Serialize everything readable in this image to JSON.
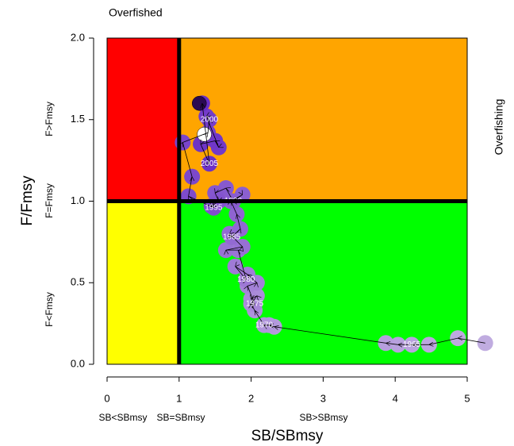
{
  "chart_data": {
    "type": "kobe",
    "title": "Overfished",
    "right_label": "Overfishing",
    "xlabel": "SB/SBmsy",
    "ylabel": "F/Fmsy",
    "x_zone_labels": [
      "SB<SBmsy",
      "SB=SBmsy",
      "SB>SBmsy"
    ],
    "y_zone_labels": [
      "F<Fmsy",
      "F=Fmsy",
      "F>Fmsy"
    ],
    "xlim": [
      0,
      5
    ],
    "ylim": [
      0,
      2
    ],
    "xticks": [
      0,
      1,
      2,
      3,
      4,
      5
    ],
    "yticks": [
      {
        "value": 0,
        "label": "0.0"
      },
      0.5,
      {
        "value": 1,
        "label": "1.0"
      },
      1.5,
      {
        "value": 2,
        "label": "2.0"
      }
    ],
    "ref_lines": {
      "x": 1,
      "y": 1
    },
    "quadrant_colors": {
      "low_sb_high_f": "#ff0000",
      "high_sb_high_f": "#ffa500",
      "low_sb_low_f": "#ffff00",
      "high_sb_low_f": "#00ff00"
    },
    "color_start": "#c0ace0",
    "color_end": "#6a2ec6",
    "x": [
      5.25,
      4.87,
      4.47,
      4.23,
      4.04,
      3.87,
      2.32,
      2.25,
      2.18,
      2.05,
      2.0,
      2.08,
      2.0,
      2.05,
      1.95,
      2.08,
      1.95,
      1.78,
      1.93,
      1.82,
      1.65,
      1.88,
      1.7,
      1.73,
      1.85,
      1.8,
      1.72,
      1.88,
      1.75,
      1.65,
      1.5,
      1.55,
      1.45,
      1.48,
      1.13,
      1.18,
      1.05,
      1.4,
      1.42,
      1.38,
      1.55,
      1.5,
      1.3,
      1.42,
      1.32
    ],
    "y": [
      0.13,
      0.16,
      0.12,
      0.12,
      0.12,
      0.13,
      0.23,
      0.24,
      0.24,
      0.33,
      0.37,
      0.42,
      0.4,
      0.37,
      0.48,
      0.5,
      0.55,
      0.6,
      0.52,
      0.7,
      0.7,
      0.72,
      0.8,
      0.78,
      0.83,
      0.92,
      1.0,
      1.04,
      1.0,
      1.08,
      1.05,
      1.0,
      0.97,
      0.96,
      1.03,
      1.15,
      1.36,
      1.42,
      1.5,
      1.52,
      1.33,
      1.37,
      1.35,
      1.23,
      1.6
    ],
    "point_labels": [
      null,
      null,
      null,
      "1965",
      null,
      null,
      null,
      null,
      "1970",
      null,
      null,
      null,
      null,
      "1975",
      null,
      null,
      null,
      null,
      "1980",
      null,
      null,
      null,
      null,
      "1985",
      null,
      null,
      null,
      null,
      "1990",
      null,
      null,
      null,
      null,
      "1995",
      null,
      null,
      null,
      null,
      "2000",
      null,
      null,
      null,
      null,
      "2005",
      null
    ],
    "highlight_points": [
      {
        "x": 1.28,
        "y": 1.6,
        "color": "#2b0a52"
      },
      {
        "x": 1.35,
        "y": 1.41,
        "color": "#ffffff"
      }
    ]
  }
}
